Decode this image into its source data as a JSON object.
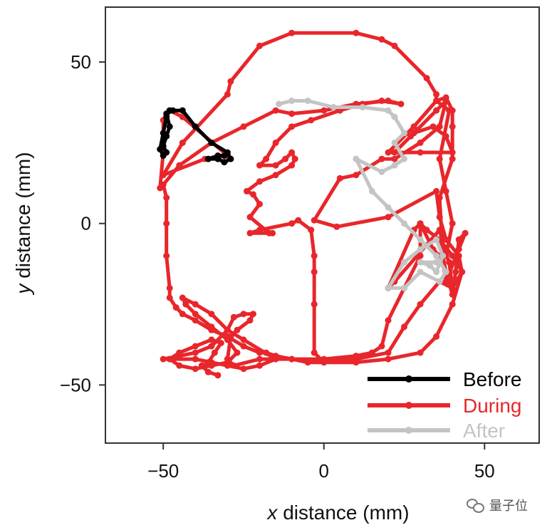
{
  "chart_data": {
    "type": "line",
    "xlabel_var": "x",
    "xlabel_rest": " distance (mm)",
    "ylabel_var": "y",
    "ylabel_rest": " distance (mm)",
    "xlim": [
      -68,
      67
    ],
    "ylim": [
      -68,
      67
    ],
    "xticks": [
      -50,
      0,
      50
    ],
    "yticks": [
      50,
      0,
      -50
    ],
    "xtick_labels": [
      "−50",
      "0",
      "50"
    ],
    "ytick_labels": [
      "50",
      "0",
      "−50"
    ],
    "grid": false,
    "legend": "bottom-right",
    "series": [
      {
        "name": "During",
        "color": "#e8262b",
        "points": [
          [
            -51,
            11
          ],
          [
            -50,
            22
          ],
          [
            -50,
            32
          ],
          [
            -48,
            35
          ],
          [
            -44,
            33
          ],
          [
            -30,
            21
          ],
          [
            -37,
            20
          ],
          [
            -50,
            15
          ],
          [
            -44,
            25
          ],
          [
            -30,
            40
          ],
          [
            -29,
            44
          ],
          [
            -20,
            55
          ],
          [
            -10,
            59
          ],
          [
            10,
            59
          ],
          [
            18,
            57
          ],
          [
            22,
            55
          ],
          [
            32,
            45
          ],
          [
            35,
            40
          ],
          [
            35,
            38
          ],
          [
            38,
            39
          ],
          [
            40,
            35
          ],
          [
            40,
            30
          ],
          [
            40,
            20
          ],
          [
            36,
            8
          ],
          [
            37,
            -10
          ],
          [
            38,
            -15
          ],
          [
            40,
            -22
          ],
          [
            41,
            -15
          ],
          [
            42,
            -5
          ],
          [
            44,
            -3
          ],
          [
            42,
            -8
          ],
          [
            38,
            -18
          ],
          [
            36,
            -5
          ],
          [
            39,
            -12
          ],
          [
            40,
            -20
          ],
          [
            36,
            -10
          ],
          [
            34,
            -8
          ],
          [
            30,
            0
          ],
          [
            28,
            -2
          ],
          [
            20,
            -20
          ],
          [
            22,
            -18
          ],
          [
            36,
            -2
          ],
          [
            38,
            -10
          ],
          [
            40,
            0
          ],
          [
            38,
            10
          ],
          [
            36,
            20
          ],
          [
            39,
            35
          ],
          [
            35,
            38
          ],
          [
            28,
            30
          ],
          [
            20,
            22
          ],
          [
            30,
            22
          ],
          [
            40,
            22
          ],
          [
            38,
            27
          ],
          [
            34,
            30
          ],
          [
            28,
            28
          ],
          [
            22,
            22
          ],
          [
            27,
            27
          ],
          [
            35,
            35
          ],
          [
            38,
            38
          ],
          [
            36,
            30
          ],
          [
            30,
            25
          ],
          [
            22,
            20
          ],
          [
            18,
            20
          ],
          [
            10,
            15
          ],
          [
            5,
            14
          ],
          [
            -3,
            1
          ],
          [
            4,
            -1
          ],
          [
            20,
            2
          ],
          [
            35,
            10
          ],
          [
            36,
            2
          ],
          [
            38,
            -5
          ],
          [
            42,
            -10
          ],
          [
            43,
            -15
          ],
          [
            40,
            -20
          ],
          [
            36,
            -18
          ],
          [
            30,
            -25
          ],
          [
            25,
            -32
          ],
          [
            20,
            -40
          ],
          [
            10,
            -42
          ],
          [
            0,
            -43
          ],
          [
            -3,
            -40
          ],
          [
            -3,
            -25
          ],
          [
            -3,
            -15
          ],
          [
            -3,
            -10
          ],
          [
            -4,
            -2
          ],
          [
            -8,
            1
          ],
          [
            -10,
            0
          ],
          [
            -20,
            -2
          ],
          [
            -23,
            -3
          ],
          [
            -16,
            -3
          ],
          [
            -17,
            -3
          ],
          [
            -23,
            2
          ],
          [
            -20,
            6
          ],
          [
            -22,
            9
          ],
          [
            -24,
            10
          ],
          [
            -20,
            13
          ],
          [
            -15,
            15
          ],
          [
            -10,
            18
          ],
          [
            -9,
            20
          ],
          [
            -10,
            22
          ],
          [
            -12,
            20
          ],
          [
            -15,
            18
          ],
          [
            -20,
            18
          ],
          [
            -18,
            20
          ],
          [
            -15,
            25
          ],
          [
            -10,
            30
          ],
          [
            -4,
            32
          ],
          [
            5,
            35
          ],
          [
            12,
            37
          ],
          [
            18,
            38
          ],
          [
            24,
            37
          ],
          [
            20,
            38
          ],
          [
            10,
            37
          ],
          [
            0,
            35
          ],
          [
            -10,
            34
          ],
          [
            -15,
            35
          ],
          [
            -25,
            30
          ],
          [
            -35,
            25
          ],
          [
            -45,
            18
          ],
          [
            -50,
            12
          ],
          [
            -49,
            8
          ],
          [
            -49,
            0
          ],
          [
            -49,
            -10
          ],
          [
            -48,
            -20
          ],
          [
            -48,
            -23
          ],
          [
            -46,
            -26
          ],
          [
            -44,
            -28
          ],
          [
            -40,
            -30
          ],
          [
            -35,
            -33
          ],
          [
            -30,
            -35
          ],
          [
            -25,
            -38
          ],
          [
            -20,
            -40
          ],
          [
            -18,
            -40
          ],
          [
            -15,
            -41
          ],
          [
            -10,
            -42
          ],
          [
            -5,
            -43
          ],
          [
            0,
            -43
          ],
          [
            10,
            -43
          ],
          [
            20,
            -42
          ],
          [
            30,
            -40
          ],
          [
            35,
            -35
          ],
          [
            40,
            -25
          ],
          [
            43,
            -15
          ],
          [
            40,
            -10
          ],
          [
            36,
            -5
          ],
          [
            32,
            -2
          ],
          [
            30,
            0
          ],
          [
            30,
            -10
          ],
          [
            25,
            -20
          ],
          [
            20,
            -30
          ],
          [
            18,
            -38
          ],
          [
            15,
            -40
          ],
          [
            10,
            -41
          ],
          [
            0,
            -42
          ],
          [
            -10,
            -42
          ],
          [
            -20,
            -42
          ],
          [
            -28,
            -44
          ],
          [
            -30,
            -42
          ],
          [
            -29,
            -35
          ],
          [
            -27,
            -33
          ],
          [
            -23,
            -30
          ],
          [
            -22,
            -28
          ],
          [
            -25,
            -28
          ],
          [
            -28,
            -29
          ],
          [
            -30,
            -33
          ],
          [
            -35,
            -38
          ],
          [
            -40,
            -40
          ],
          [
            -45,
            -41
          ],
          [
            -50,
            -42
          ],
          [
            -47,
            -42
          ],
          [
            -40,
            -42
          ],
          [
            -35,
            -43
          ],
          [
            -30,
            -44
          ],
          [
            -25,
            -45
          ],
          [
            -20,
            -44
          ],
          [
            -15,
            -42
          ],
          [
            -25,
            -36
          ],
          [
            -30,
            -33
          ],
          [
            -35,
            -28
          ],
          [
            -40,
            -25
          ],
          [
            -44,
            -23
          ],
          [
            -43,
            -25
          ],
          [
            -40,
            -28
          ],
          [
            -35,
            -32
          ],
          [
            -30,
            -36
          ],
          [
            -27,
            -40
          ],
          [
            -30,
            -43
          ],
          [
            -35,
            -44
          ],
          [
            -40,
            -45
          ],
          [
            -45,
            -44
          ],
          [
            -48,
            -42
          ],
          [
            -45,
            -40
          ],
          [
            -40,
            -38
          ],
          [
            -35,
            -36
          ],
          [
            -32,
            -37
          ],
          [
            -34,
            -40
          ],
          [
            -36,
            -43
          ],
          [
            -38,
            -44
          ],
          [
            -36,
            -46
          ],
          [
            -33,
            -47
          ]
        ]
      },
      {
        "name": "After",
        "color": "#c4c4c4",
        "points": [
          [
            -14,
            37
          ],
          [
            -10,
            38
          ],
          [
            -5,
            38
          ],
          [
            3,
            36
          ],
          [
            12,
            36
          ],
          [
            20,
            35
          ],
          [
            22,
            33
          ],
          [
            25,
            28
          ],
          [
            22,
            25
          ],
          [
            25,
            20
          ],
          [
            22,
            18
          ],
          [
            18,
            16
          ],
          [
            10,
            20
          ],
          [
            15,
            10
          ],
          [
            20,
            5
          ],
          [
            25,
            0
          ],
          [
            30,
            -5
          ],
          [
            35,
            -10
          ],
          [
            38,
            -15
          ],
          [
            36,
            -18
          ],
          [
            30,
            -15
          ],
          [
            25,
            -20
          ],
          [
            20,
            -20
          ],
          [
            25,
            -12
          ],
          [
            30,
            -8
          ],
          [
            35,
            -5
          ],
          [
            37,
            -10
          ],
          [
            35,
            -15
          ],
          [
            33,
            -13
          ],
          [
            30,
            -12
          ],
          [
            36,
            -12
          ],
          [
            35,
            -12
          ]
        ]
      },
      {
        "name": "Before",
        "color": "#000000",
        "points": [
          [
            -48,
            35
          ],
          [
            -49,
            33
          ],
          [
            -50,
            28
          ],
          [
            -51,
            23
          ],
          [
            -50,
            21
          ],
          [
            -49,
            22
          ],
          [
            -50,
            24
          ],
          [
            -49,
            27
          ],
          [
            -48,
            30
          ],
          [
            -49,
            34
          ],
          [
            -47,
            35
          ],
          [
            -44,
            35
          ],
          [
            -40,
            30
          ],
          [
            -35,
            25
          ],
          [
            -30,
            22
          ],
          [
            -29,
            20
          ],
          [
            -31,
            19
          ],
          [
            -33,
            20
          ],
          [
            -36,
            20
          ],
          [
            -33,
            21
          ],
          [
            -31,
            21
          ]
        ]
      }
    ]
  },
  "legend_items": [
    "Before",
    "During",
    "After"
  ],
  "watermark_text": "量子位"
}
